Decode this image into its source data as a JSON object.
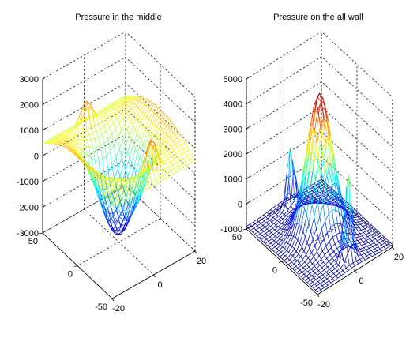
{
  "figure": {
    "background": "#ffffff",
    "colormap": "jet"
  },
  "chart_data": [
    {
      "type": "surface",
      "style": "mesh",
      "title": "Pressure in the middle",
      "xlabel": "",
      "ylabel": "",
      "zlabel": "",
      "grid": true,
      "xlim": [
        -20,
        20
      ],
      "ylim": [
        -50,
        50
      ],
      "zlim": [
        -3000,
        3000
      ],
      "x_ticks": [
        {
          "value": -20,
          "label": "-20"
        },
        {
          "value": 0,
          "label": "0"
        },
        {
          "value": 20,
          "label": "20"
        }
      ],
      "y_ticks": [
        {
          "value": -50,
          "label": "-50"
        },
        {
          "value": 0,
          "label": "0"
        },
        {
          "value": 50,
          "label": "50"
        }
      ],
      "z_ticks": [
        {
          "value": -3000,
          "label": "-3000"
        },
        {
          "value": -2000,
          "label": "-2000"
        },
        {
          "value": -1000,
          "label": "-1000"
        },
        {
          "value": 0,
          "label": "0"
        },
        {
          "value": 1000,
          "label": "1000"
        },
        {
          "value": 2000,
          "label": "2000"
        },
        {
          "value": 3000,
          "label": "3000"
        }
      ],
      "surface_features": [
        {
          "kind": "peak",
          "x": -2,
          "y": 40,
          "z": 1400
        },
        {
          "kind": "peak",
          "x": 2,
          "y": -40,
          "z": 2700
        },
        {
          "kind": "trough",
          "x": 0,
          "y": 0,
          "z": -3000
        },
        {
          "kind": "rim",
          "x": 0,
          "y": 20,
          "z": 800
        }
      ]
    },
    {
      "type": "surface",
      "style": "mesh",
      "title": "Pressure on the all wall",
      "xlabel": "",
      "ylabel": "",
      "zlabel": "",
      "grid": true,
      "xlim": [
        -20,
        20
      ],
      "ylim": [
        -50,
        50
      ],
      "zlim": [
        -1000,
        5000
      ],
      "x_ticks": [
        {
          "value": -20,
          "label": "-20"
        },
        {
          "value": 0,
          "label": "0"
        },
        {
          "value": 20,
          "label": "20"
        }
      ],
      "y_ticks": [
        {
          "value": -50,
          "label": "-50"
        },
        {
          "value": 0,
          "label": "0"
        },
        {
          "value": 50,
          "label": "50"
        }
      ],
      "z_ticks": [
        {
          "value": -1000,
          "label": "-1000"
        },
        {
          "value": 0,
          "label": "0"
        },
        {
          "value": 1000,
          "label": "1000"
        },
        {
          "value": 2000,
          "label": "2000"
        },
        {
          "value": 3000,
          "label": "3000"
        },
        {
          "value": 4000,
          "label": "4000"
        },
        {
          "value": 5000,
          "label": "5000"
        }
      ],
      "surface_features": [
        {
          "kind": "peak",
          "x": 0,
          "y": 0,
          "z": 4400
        },
        {
          "kind": "peak",
          "x": 0,
          "y": 40,
          "z": 2000
        },
        {
          "kind": "peak",
          "x": 0,
          "y": -40,
          "z": 3400
        },
        {
          "kind": "base",
          "x": 15,
          "y": 0,
          "z": -1000
        }
      ]
    }
  ]
}
